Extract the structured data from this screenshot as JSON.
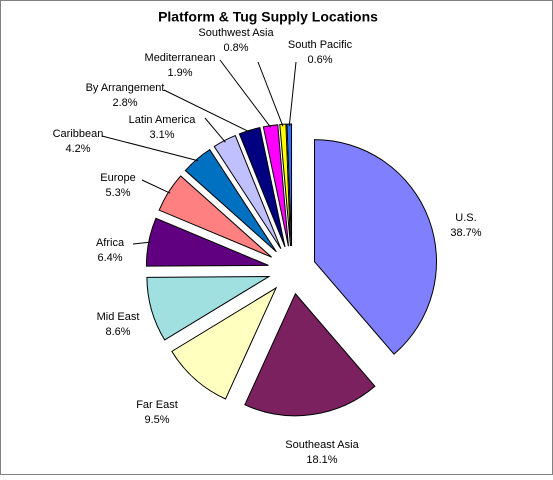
{
  "chart_data": {
    "type": "pie",
    "title": "Platform & Tug Supply Locations",
    "categories": [
      "U.S.",
      "Southeast Asia",
      "Far East",
      "Mid East",
      "Africa",
      "Europe",
      "Caribbean",
      "Latin America",
      "By Arrangement",
      "Mediterranean",
      "Southwest Asia",
      "South Pacific"
    ],
    "values": [
      38.7,
      18.1,
      9.5,
      8.6,
      6.4,
      5.3,
      4.2,
      3.1,
      2.8,
      1.9,
      0.8,
      0.6
    ],
    "value_labels": [
      "38.7%",
      "18.1%",
      "9.5%",
      "8.6%",
      "6.4%",
      "5.3%",
      "4.2%",
      "3.1%",
      "2.8%",
      "1.9%",
      "0.8%",
      "0.6%"
    ],
    "colors": [
      "#8080ff",
      "#7b2160",
      "#ffffc0",
      "#a0e0e0",
      "#600080",
      "#ff8080",
      "#0070c0",
      "#c0c0ff",
      "#000080",
      "#ff00ff",
      "#ffff00",
      "#3070ff"
    ]
  }
}
